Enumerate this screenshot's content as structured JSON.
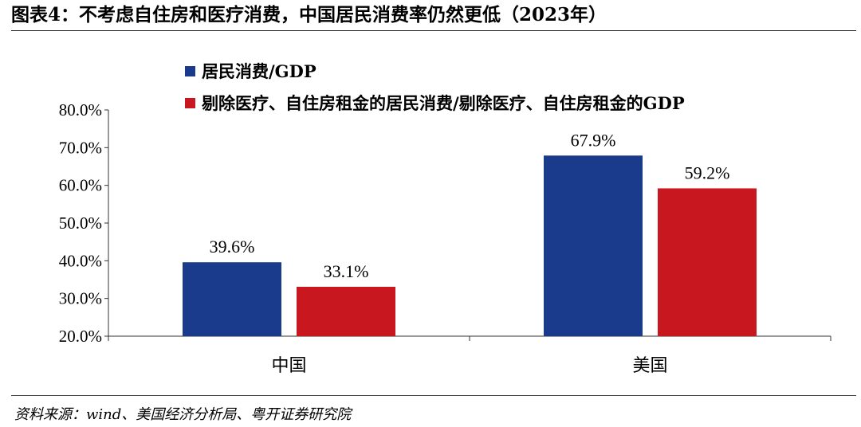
{
  "header": {
    "title": "图表4：不考虑自住房和医疗消费，中国居民消费率仍然更低（2023年）"
  },
  "footer": {
    "source": "资料来源：wind、美国经济分析局、粤开证券研究院"
  },
  "colors": {
    "series_1": "#1a3a8c",
    "series_2": "#c8171e"
  },
  "chart_data": {
    "type": "bar",
    "categories": [
      "中国",
      "美国"
    ],
    "series": [
      {
        "name": "居民消费/GDP",
        "values": [
          39.6,
          67.9
        ],
        "labels": [
          "39.6%",
          "67.9%"
        ]
      },
      {
        "name": "剔除医疗、自住房租金的居民消费/剔除医疗、自住房租金的GDP",
        "values": [
          33.1,
          59.2
        ],
        "labels": [
          "33.1%",
          "59.2%"
        ]
      }
    ],
    "ylim": [
      20,
      80
    ],
    "yticks": [
      "20.0%",
      "30.0%",
      "40.0%",
      "50.0%",
      "60.0%",
      "70.0%",
      "80.0%"
    ],
    "grid": false,
    "legend_position": "top-left"
  }
}
